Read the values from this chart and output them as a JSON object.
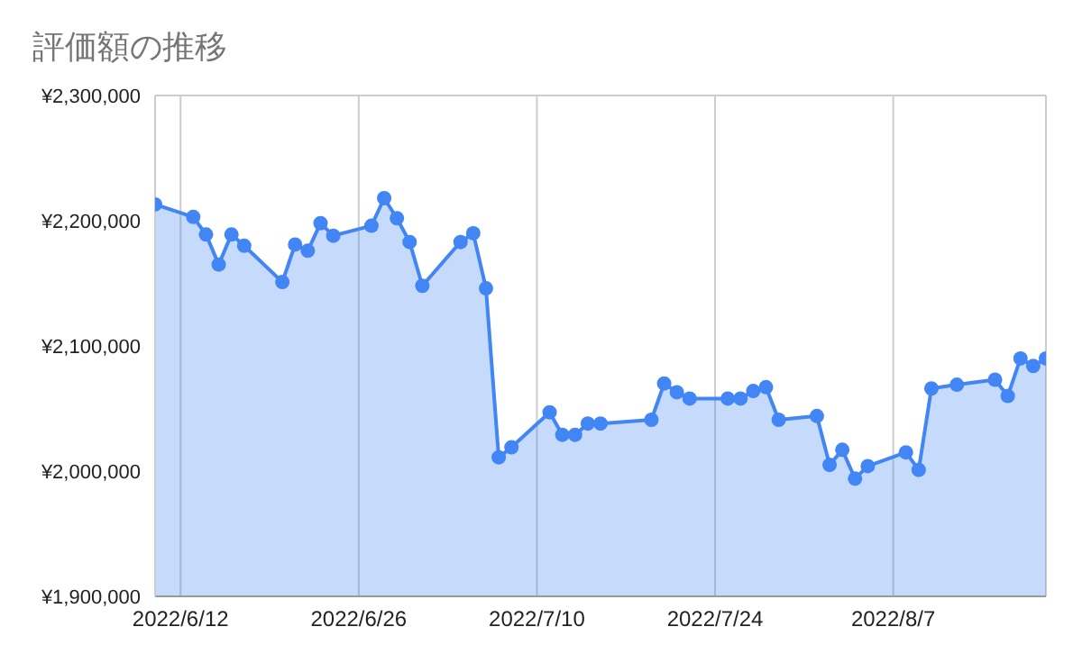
{
  "chart_data": {
    "type": "area",
    "title": "評価額の推移",
    "x": [
      "2022-06-10",
      "2022-06-13",
      "2022-06-14",
      "2022-06-15",
      "2022-06-16",
      "2022-06-17",
      "2022-06-20",
      "2022-06-21",
      "2022-06-22",
      "2022-06-23",
      "2022-06-24",
      "2022-06-27",
      "2022-06-28",
      "2022-06-29",
      "2022-06-30",
      "2022-07-01",
      "2022-07-04",
      "2022-07-05",
      "2022-07-06",
      "2022-07-07",
      "2022-07-08",
      "2022-07-11",
      "2022-07-12",
      "2022-07-13",
      "2022-07-14",
      "2022-07-15",
      "2022-07-19",
      "2022-07-20",
      "2022-07-21",
      "2022-07-22",
      "2022-07-25",
      "2022-07-26",
      "2022-07-27",
      "2022-07-28",
      "2022-07-29",
      "2022-08-01",
      "2022-08-02",
      "2022-08-03",
      "2022-08-04",
      "2022-08-05",
      "2022-08-08",
      "2022-08-09",
      "2022-08-10",
      "2022-08-12",
      "2022-08-15",
      "2022-08-16",
      "2022-08-17",
      "2022-08-18",
      "2022-08-19"
    ],
    "series": [
      {
        "color": "#4285f4",
        "values": [
          2213000,
          2203000,
          2189000,
          2165000,
          2189000,
          2180000,
          2151000,
          2181000,
          2176000,
          2198000,
          2188000,
          2196000,
          2218000,
          2202000,
          2183000,
          2148000,
          2183000,
          2190000,
          2146000,
          2011000,
          2019000,
          2047000,
          2029000,
          2029000,
          2038000,
          2038000,
          2041000,
          2070000,
          2063000,
          2058000,
          2058000,
          2058000,
          2064000,
          2067000,
          2041000,
          2044000,
          2005000,
          2017000,
          1994000,
          2004000,
          2015000,
          2001000,
          2066000,
          2069000,
          2073000,
          2060000,
          2090000,
          2084000,
          2090000
        ]
      }
    ],
    "xlim": [
      "2022-06-10",
      "2022-08-19"
    ],
    "xticks": [
      {
        "value": "2022-06-12",
        "label": "2022/6/12"
      },
      {
        "value": "2022-06-26",
        "label": "2022/6/26"
      },
      {
        "value": "2022-07-10",
        "label": "2022/7/10"
      },
      {
        "value": "2022-07-24",
        "label": "2022/7/24"
      },
      {
        "value": "2022-08-07",
        "label": "2022/8/7"
      }
    ],
    "ylim": [
      1900000,
      2300000
    ],
    "yticks": [
      {
        "value": 1900000,
        "label": "¥1,900,000"
      },
      {
        "value": 2000000,
        "label": "¥2,000,000"
      },
      {
        "value": 2100000,
        "label": "¥2,100,000"
      },
      {
        "value": 2200000,
        "label": "¥2,200,000"
      },
      {
        "value": 2300000,
        "label": "¥2,300,000"
      }
    ],
    "grid": true,
    "marker": "circle",
    "legend": false
  }
}
